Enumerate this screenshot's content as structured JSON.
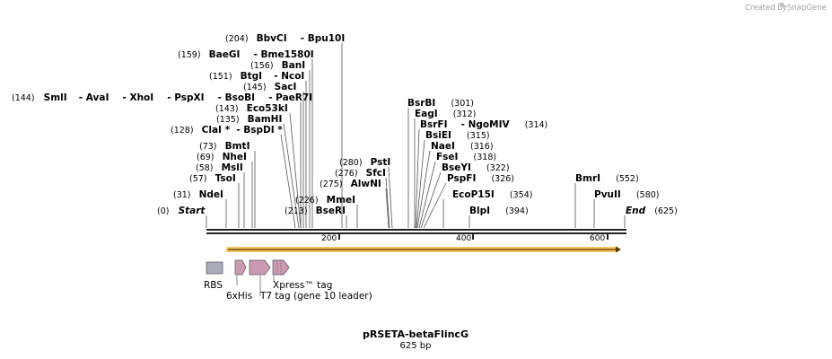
{
  "credit": "Created by",
  "brand": "SnapGene",
  "title": "pRSETA-betaFlincG",
  "length_label": "625 bp",
  "sequence_length": 625,
  "start_label": "Start",
  "start_pos": "(0)",
  "end_label": "End",
  "end_pos": "(625)",
  "ruler": {
    "ticks": [
      "200",
      "400",
      "600"
    ]
  },
  "rows": [
    {
      "sites": [
        {
          "pos": "(204)",
          "name": "BbvCI"
        },
        {
          "name": "Bpu10I"
        }
      ]
    },
    {
      "sites": [
        {
          "pos": "(159)",
          "name": "BaeGI"
        },
        {
          "name": "Bme1580I"
        }
      ]
    },
    {
      "sites": [
        {
          "pos": "(156)",
          "name": "BanI"
        }
      ]
    },
    {
      "sites": [
        {
          "pos": "(151)",
          "name": "BtgI"
        },
        {
          "name": "NcoI"
        }
      ]
    },
    {
      "sites": [
        {
          "pos": "(145)",
          "name": "SacI"
        }
      ]
    },
    {
      "sites": [
        {
          "pos": "(144)",
          "name": "SmlI"
        },
        {
          "name": "AvaI"
        },
        {
          "name": "XhoI"
        },
        {
          "name": "PspXI"
        },
        {
          "name": "BsoBI"
        },
        {
          "name": "PaeR7I"
        }
      ]
    },
    {
      "sites": [
        {
          "pos": "(143)",
          "name": "Eco53kI"
        }
      ]
    },
    {
      "sites": [
        {
          "pos": "(135)",
          "name": "BamHI"
        }
      ]
    },
    {
      "sites": [
        {
          "pos": "(128)",
          "name": "ClaI *"
        },
        {
          "name": "BspDI *"
        }
      ]
    },
    {
      "sites": [
        {
          "pos": "(73)",
          "name": "BmtI"
        }
      ]
    },
    {
      "sites": [
        {
          "pos": "(69)",
          "name": "NheI"
        }
      ]
    },
    {
      "sites": [
        {
          "pos": "(58)",
          "name": "MslI"
        }
      ]
    },
    {
      "sites": [
        {
          "pos": "(57)",
          "name": "TsoI"
        }
      ]
    },
    {
      "sites": [
        {
          "pos": "(31)",
          "name": "NdeI"
        }
      ]
    },
    {
      "sites": [
        {
          "pos": "(280)",
          "name": "PstI"
        }
      ]
    },
    {
      "sites": [
        {
          "pos": "(276)",
          "name": "SfcI"
        }
      ]
    },
    {
      "sites": [
        {
          "pos": "(275)",
          "name": "AlwNI"
        }
      ]
    },
    {
      "sites": [
        {
          "pos": "(226)",
          "name": "MmeI"
        }
      ]
    },
    {
      "sites": [
        {
          "pos": "(213)",
          "name": "BseRI"
        }
      ]
    },
    {
      "sites": [
        {
          "name": "BsrBI",
          "pos": "(301)"
        }
      ]
    },
    {
      "sites": [
        {
          "name": "EagI",
          "pos": "(312)"
        }
      ]
    },
    {
      "sites": [
        {
          "name": "BsrFI"
        },
        {
          "name": "NgoMIV",
          "pos": "(314)"
        }
      ]
    },
    {
      "sites": [
        {
          "name": "BsiEI",
          "pos": "(315)"
        }
      ]
    },
    {
      "sites": [
        {
          "name": "NaeI",
          "pos": "(316)"
        }
      ]
    },
    {
      "sites": [
        {
          "name": "FseI",
          "pos": "(318)"
        }
      ]
    },
    {
      "sites": [
        {
          "name": "BseYI",
          "pos": "(322)"
        }
      ]
    },
    {
      "sites": [
        {
          "name": "PspFI",
          "pos": "(326)"
        }
      ]
    },
    {
      "sites": [
        {
          "name": "EcoP15I",
          "pos": "(354)"
        }
      ]
    },
    {
      "sites": [
        {
          "name": "BlpI",
          "pos": "(394)"
        }
      ]
    },
    {
      "sites": [
        {
          "name": "BmrI",
          "pos": "(552)"
        }
      ]
    },
    {
      "sites": [
        {
          "name": "PvuII",
          "pos": "(580)"
        }
      ]
    }
  ],
  "features": [
    {
      "name": "RBS",
      "kind": "rbs",
      "color": "#a9aeb8"
    },
    {
      "name": "6xHis",
      "kind": "cds",
      "color": "#cc99b2"
    },
    {
      "name": "T7 tag (gene 10 leader)",
      "kind": "cds",
      "color": "#cc99b2"
    },
    {
      "name": "Xpress™ tag",
      "kind": "cds",
      "color": "#cc99b2"
    }
  ],
  "orf_color": "#f5c55d"
}
